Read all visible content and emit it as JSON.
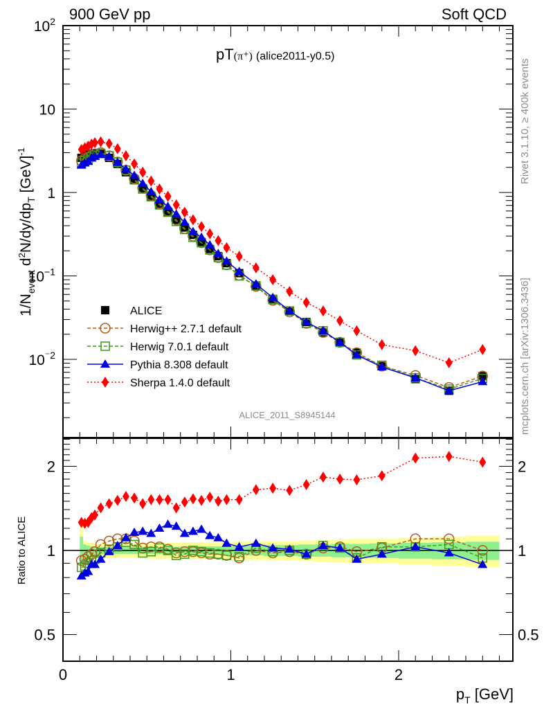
{
  "header": {
    "left": "900 GeV pp",
    "right": "Soft QCD",
    "title_main": "pT",
    "title_sub": "(π⁺)",
    "title_tag": "(alice2011-y0.5)",
    "side_top": "Rivet 3.1.10, ≥ 400k events",
    "side_bottom": "mcplots.cern.ch [arXiv:1306.3436]",
    "watermark": "ALICE_2011_S8945144"
  },
  "colors": {
    "alice": "#000000",
    "herwigpp": "#b35a1f",
    "herwig7": "#3d9a1f",
    "pythia": "#0000e0",
    "sherpa": "#ff0000",
    "band_inner": "#90f090",
    "band_outer": "#ffff99"
  },
  "chart_data": [
    {
      "type": "line",
      "panel": "main",
      "ylabel": "1/N_event d²N/dy/dp_T [GeV]⁻¹",
      "yscale": "log",
      "ylim": [
        0.001,
        100
      ],
      "xlim": [
        0,
        2.6
      ],
      "ytick_labels": [
        "10²",
        "10",
        "1",
        "10⁻¹",
        "10⁻²"
      ],
      "ytick_values": [
        100,
        10,
        1,
        0.1,
        0.01
      ],
      "legend_position": "lower-left",
      "x": [
        0.11,
        0.13,
        0.15,
        0.17,
        0.19,
        0.225,
        0.275,
        0.325,
        0.375,
        0.425,
        0.475,
        0.525,
        0.575,
        0.625,
        0.675,
        0.725,
        0.775,
        0.825,
        0.875,
        0.925,
        0.975,
        1.05,
        1.15,
        1.25,
        1.35,
        1.45,
        1.55,
        1.65,
        1.75,
        1.9,
        2.1,
        2.3,
        2.5
      ],
      "series": [
        {
          "name": "ALICE",
          "key": "alice",
          "marker": "square-filled",
          "line": "none",
          "values": [
            2.6,
            2.75,
            2.85,
            2.9,
            2.95,
            2.9,
            2.6,
            2.2,
            1.75,
            1.4,
            1.12,
            0.9,
            0.72,
            0.58,
            0.47,
            0.38,
            0.31,
            0.255,
            0.21,
            0.172,
            0.142,
            0.108,
            0.075,
            0.053,
            0.038,
            0.028,
            0.021,
            0.016,
            0.012,
            0.0083,
            0.0058,
            0.0042,
            0.0063
          ]
        },
        {
          "name": "Herwig++ 2.7.1 default",
          "key": "herwigpp",
          "marker": "circle-open",
          "line": "dashed",
          "values": [
            2.4,
            2.55,
            2.65,
            2.78,
            2.9,
            3.0,
            2.75,
            2.32,
            1.85,
            1.47,
            1.13,
            0.92,
            0.74,
            0.6,
            0.47,
            0.37,
            0.3,
            0.25,
            0.205,
            0.166,
            0.136,
            0.102,
            0.075,
            0.051,
            0.037,
            0.027,
            0.021,
            0.016,
            0.012,
            0.0083,
            0.0064,
            0.0046,
            0.0063
          ]
        },
        {
          "name": "Herwig 7.0.1 default",
          "key": "herwig7",
          "marker": "square-open",
          "line": "dashed",
          "values": [
            2.25,
            2.4,
            2.5,
            2.65,
            2.8,
            2.95,
            2.75,
            2.3,
            1.85,
            1.42,
            1.1,
            0.89,
            0.71,
            0.58,
            0.45,
            0.36,
            0.29,
            0.25,
            0.205,
            0.166,
            0.135,
            0.1,
            0.076,
            0.052,
            0.038,
            0.027,
            0.022,
            0.016,
            0.0113,
            0.0085,
            0.006,
            0.0044,
            0.0059
          ]
        },
        {
          "name": "Pythia 8.308 default",
          "key": "pythia",
          "marker": "triangle-filled",
          "line": "solid",
          "values": [
            2.12,
            2.25,
            2.35,
            2.6,
            2.7,
            2.85,
            2.7,
            2.3,
            1.9,
            1.6,
            1.28,
            1.02,
            0.82,
            0.68,
            0.55,
            0.44,
            0.34,
            0.29,
            0.235,
            0.185,
            0.15,
            0.113,
            0.08,
            0.055,
            0.038,
            0.028,
            0.022,
            0.016,
            0.0113,
            0.0081,
            0.006,
            0.0042,
            0.0054
          ]
        },
        {
          "name": "Sherpa 1.4.0 default",
          "key": "sherpa",
          "marker": "diamond-filled",
          "line": "dotted",
          "values": [
            3.27,
            3.43,
            3.6,
            3.8,
            3.95,
            4.05,
            3.85,
            3.35,
            2.75,
            2.2,
            1.75,
            1.37,
            1.1,
            0.9,
            0.71,
            0.58,
            0.47,
            0.39,
            0.32,
            0.265,
            0.218,
            0.172,
            0.125,
            0.09,
            0.065,
            0.048,
            0.038,
            0.029,
            0.022,
            0.015,
            0.0127,
            0.0091,
            0.0131
          ]
        }
      ]
    },
    {
      "type": "line",
      "panel": "ratio",
      "ylabel": "Ratio to ALICE",
      "xlabel": "p_T [GeV]",
      "yscale": "log",
      "ylim": [
        0.4,
        2.5
      ],
      "xlim": [
        0,
        2.6
      ],
      "xtick_labels": [
        "0",
        "1",
        "2"
      ],
      "xtick_values": [
        0,
        1,
        2
      ],
      "ytick_labels": [
        "0.5",
        "1",
        "2"
      ],
      "ytick_values": [
        0.5,
        1,
        2
      ],
      "x": [
        0.11,
        0.13,
        0.15,
        0.17,
        0.19,
        0.225,
        0.275,
        0.325,
        0.375,
        0.425,
        0.475,
        0.525,
        0.575,
        0.625,
        0.675,
        0.725,
        0.775,
        0.825,
        0.875,
        0.925,
        0.975,
        1.05,
        1.15,
        1.25,
        1.35,
        1.45,
        1.55,
        1.65,
        1.75,
        1.9,
        2.1,
        2.3,
        2.5
      ],
      "band_inner": [
        0.12,
        0.05,
        0.04,
        0.035,
        0.03,
        0.03,
        0.03,
        0.03,
        0.03,
        0.03,
        0.03,
        0.03,
        0.03,
        0.03,
        0.03,
        0.035,
        0.035,
        0.035,
        0.035,
        0.035,
        0.035,
        0.04,
        0.04,
        0.045,
        0.045,
        0.05,
        0.05,
        0.055,
        0.055,
        0.06,
        0.065,
        0.07,
        0.075
      ],
      "band_outer": [
        0.22,
        0.08,
        0.07,
        0.065,
        0.06,
        0.06,
        0.06,
        0.06,
        0.06,
        0.06,
        0.06,
        0.065,
        0.065,
        0.065,
        0.065,
        0.07,
        0.07,
        0.07,
        0.07,
        0.07,
        0.07,
        0.075,
        0.075,
        0.08,
        0.08,
        0.085,
        0.09,
        0.095,
        0.1,
        0.1,
        0.11,
        0.12,
        0.13
      ],
      "series": [
        {
          "name": "Herwig++ 2.7.1 default",
          "key": "herwigpp",
          "values": [
            0.92,
            0.93,
            0.95,
            0.97,
            0.99,
            1.05,
            1.08,
            1.1,
            1.1,
            1.08,
            1.02,
            1.03,
            1.03,
            1.01,
            0.98,
            0.99,
            0.99,
            0.98,
            0.97,
            0.97,
            0.96,
            0.94,
            1.0,
            0.98,
            0.99,
            0.97,
            1.02,
            1.03,
            0.99,
            1.02,
            1.1,
            1.1,
            1.0
          ]
        },
        {
          "name": "Herwig 7.0.1 default",
          "key": "herwig7",
          "values": [
            0.87,
            0.88,
            0.9,
            0.92,
            0.93,
            0.98,
            1.01,
            1.03,
            1.07,
            1.05,
            0.98,
            0.99,
            1.02,
            1.0,
            0.96,
            0.97,
            1.0,
            0.99,
            0.98,
            0.97,
            0.96,
            0.95,
            1.02,
            0.99,
            1.0,
            0.97,
            1.04,
            1.02,
            0.94,
            1.03,
            1.03,
            1.05,
            0.94
          ]
        },
        {
          "name": "Pythia 8.308 default",
          "key": "pythia",
          "values": [
            0.81,
            0.83,
            0.84,
            0.89,
            0.89,
            0.93,
            0.99,
            1.04,
            1.11,
            1.16,
            1.17,
            1.15,
            1.2,
            1.24,
            1.22,
            1.15,
            1.17,
            1.19,
            1.13,
            1.11,
            1.06,
            1.03,
            1.06,
            1.02,
            1.01,
            0.97,
            1.04,
            1.02,
            0.93,
            0.97,
            1.03,
            0.98,
            0.89
          ]
        },
        {
          "name": "Sherpa 1.4.0 default",
          "key": "sherpa",
          "values": [
            1.26,
            1.25,
            1.26,
            1.31,
            1.34,
            1.42,
            1.47,
            1.51,
            1.56,
            1.54,
            1.47,
            1.52,
            1.52,
            1.52,
            1.42,
            1.49,
            1.53,
            1.51,
            1.55,
            1.5,
            1.52,
            1.52,
            1.65,
            1.67,
            1.64,
            1.72,
            1.83,
            1.8,
            1.79,
            1.85,
            2.14,
            2.17,
            2.07
          ]
        }
      ]
    }
  ]
}
